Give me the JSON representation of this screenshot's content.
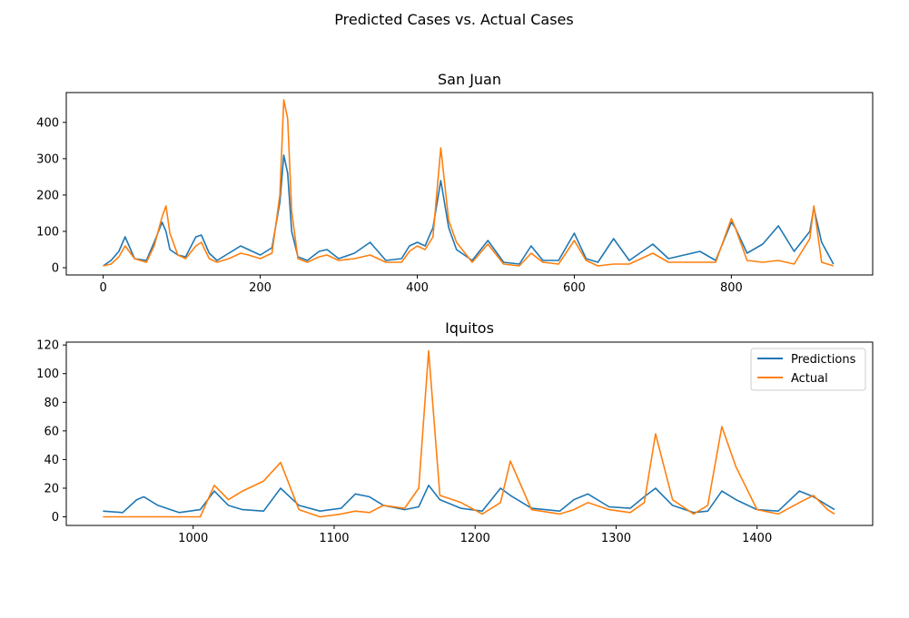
{
  "figure": {
    "suptitle": "Predicted Cases vs. Actual Cases"
  },
  "colors": {
    "predictions": "#1f77b4",
    "actual": "#ff7f0e"
  },
  "chart_data": [
    {
      "type": "line",
      "title": "San Juan",
      "xlabel": "",
      "ylabel": "",
      "xlim": [
        -47,
        980
      ],
      "ylim": [
        -20,
        482
      ],
      "xticks": [
        0,
        200,
        400,
        600,
        800
      ],
      "yticks": [
        0,
        100,
        200,
        300,
        400
      ],
      "grid": false,
      "series": [
        {
          "name": "Predictions",
          "x": [
            0,
            10,
            20,
            28,
            40,
            55,
            65,
            75,
            80,
            85,
            95,
            105,
            118,
            125,
            135,
            145,
            160,
            175,
            185,
            200,
            215,
            225,
            230,
            235,
            240,
            248,
            260,
            275,
            285,
            300,
            320,
            340,
            360,
            380,
            390,
            400,
            410,
            420,
            430,
            440,
            450,
            470,
            490,
            510,
            530,
            545,
            560,
            580,
            600,
            615,
            630,
            650,
            670,
            700,
            720,
            740,
            760,
            780,
            800,
            805,
            820,
            840,
            860,
            880,
            900,
            905,
            915,
            930
          ],
          "y": [
            5,
            20,
            45,
            85,
            25,
            20,
            70,
            125,
            100,
            50,
            35,
            30,
            85,
            90,
            40,
            20,
            40,
            60,
            50,
            35,
            55,
            180,
            310,
            260,
            100,
            30,
            20,
            45,
            50,
            25,
            40,
            70,
            20,
            25,
            60,
            70,
            60,
            110,
            240,
            110,
            50,
            20,
            75,
            15,
            10,
            60,
            20,
            20,
            95,
            25,
            15,
            80,
            20,
            65,
            25,
            35,
            45,
            20,
            125,
            110,
            40,
            65,
            115,
            45,
            100,
            165,
            70,
            10
          ]
        },
        {
          "name": "Actual",
          "x": [
            0,
            10,
            20,
            28,
            40,
            55,
            65,
            75,
            80,
            85,
            95,
            105,
            118,
            125,
            135,
            145,
            160,
            175,
            185,
            200,
            215,
            225,
            230,
            235,
            240,
            248,
            260,
            275,
            285,
            300,
            320,
            340,
            360,
            380,
            390,
            400,
            410,
            420,
            430,
            440,
            450,
            470,
            490,
            510,
            530,
            545,
            560,
            580,
            600,
            615,
            630,
            650,
            670,
            700,
            720,
            740,
            760,
            780,
            800,
            805,
            820,
            840,
            860,
            880,
            900,
            905,
            915,
            930
          ],
          "y": [
            5,
            10,
            30,
            60,
            25,
            15,
            60,
            140,
            170,
            95,
            35,
            25,
            60,
            70,
            25,
            15,
            25,
            40,
            35,
            25,
            40,
            200,
            462,
            410,
            155,
            25,
            15,
            30,
            35,
            20,
            25,
            35,
            15,
            15,
            45,
            60,
            50,
            85,
            330,
            130,
            70,
            15,
            65,
            10,
            5,
            40,
            15,
            10,
            75,
            20,
            5,
            10,
            10,
            40,
            15,
            15,
            15,
            15,
            135,
            110,
            20,
            15,
            20,
            10,
            80,
            170,
            15,
            5
          ]
        }
      ]
    },
    {
      "type": "line",
      "title": "Iquitos",
      "xlabel": "",
      "ylabel": "",
      "xlim": [
        910,
        1482
      ],
      "ylim": [
        -6,
        122
      ],
      "xticks": [
        1000,
        1100,
        1200,
        1300,
        1400
      ],
      "yticks": [
        0,
        20,
        40,
        60,
        80,
        100,
        120
      ],
      "grid": false,
      "legend": "top-right",
      "series": [
        {
          "name": "Predictions",
          "x": [
            936,
            950,
            960,
            965,
            975,
            990,
            1005,
            1015,
            1025,
            1035,
            1050,
            1062,
            1075,
            1090,
            1105,
            1115,
            1125,
            1135,
            1150,
            1160,
            1167,
            1175,
            1190,
            1205,
            1218,
            1225,
            1240,
            1260,
            1270,
            1280,
            1295,
            1310,
            1320,
            1328,
            1340,
            1355,
            1365,
            1375,
            1385,
            1400,
            1415,
            1430,
            1440,
            1450,
            1455
          ],
          "y": [
            4,
            3,
            12,
            14,
            8,
            3,
            5,
            18,
            8,
            5,
            4,
            20,
            8,
            4,
            6,
            16,
            14,
            8,
            5,
            7,
            22,
            12,
            6,
            4,
            20,
            15,
            6,
            4,
            12,
            16,
            7,
            6,
            14,
            20,
            8,
            3,
            4,
            18,
            12,
            5,
            4,
            18,
            14,
            8,
            5
          ]
        },
        {
          "name": "Actual",
          "x": [
            936,
            950,
            960,
            965,
            975,
            990,
            1005,
            1015,
            1025,
            1035,
            1050,
            1062,
            1075,
            1090,
            1105,
            1115,
            1125,
            1135,
            1150,
            1160,
            1167,
            1175,
            1190,
            1205,
            1218,
            1225,
            1240,
            1260,
            1270,
            1280,
            1295,
            1310,
            1320,
            1328,
            1340,
            1355,
            1365,
            1375,
            1385,
            1400,
            1415,
            1430,
            1440,
            1450,
            1455
          ],
          "y": [
            0,
            0,
            0,
            0,
            0,
            0,
            0,
            22,
            12,
            18,
            25,
            38,
            5,
            0,
            2,
            4,
            3,
            8,
            6,
            20,
            116,
            15,
            10,
            2,
            10,
            39,
            5,
            2,
            5,
            10,
            5,
            3,
            10,
            58,
            12,
            2,
            8,
            63,
            35,
            5,
            2,
            10,
            15,
            5,
            2
          ]
        }
      ]
    }
  ]
}
